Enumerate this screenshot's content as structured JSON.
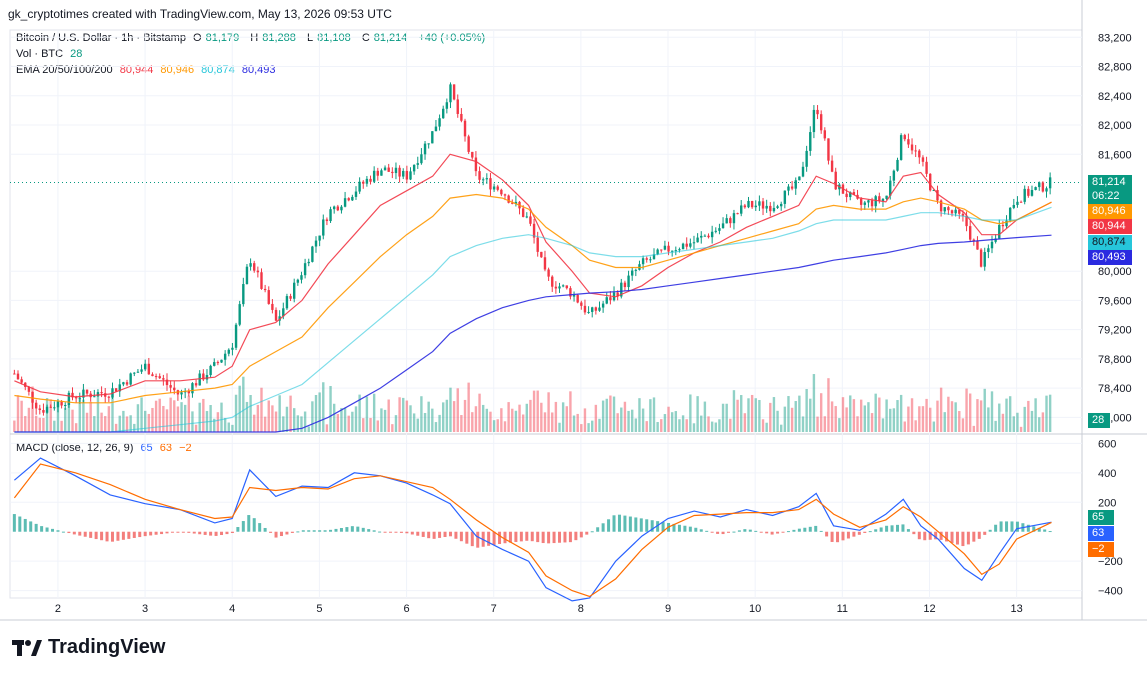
{
  "header": {
    "text": "gk_cryptotimes created with TradingView.com, May 13, 2026 09:53 UTC"
  },
  "legend": {
    "symbol": "Bitcoin / U.S. Dollar · 1h · Bitstamp",
    "o_label": "O",
    "o": "81,179",
    "h_label": "H",
    "h": "81,288",
    "l_label": "L",
    "l": "81,108",
    "c_label": "C",
    "c": "81,214",
    "change": "+40 (+0.05%)",
    "vol_label": "Vol · BTC",
    "vol": "28",
    "ema_label": "EMA 20/50/100/200",
    "ema20": "80,944",
    "ema50": "80,946",
    "ema100": "80,874",
    "ema200": "80,493",
    "macd_label": "MACD (close, 12, 26, 9)",
    "macd_v1": "65",
    "macd_v2": "63",
    "macd_v3": "−2"
  },
  "badges": {
    "price": "81,214",
    "countdown": "06:22",
    "ema50": "80,946",
    "ema20": "80,944",
    "ema100": "80,874",
    "ema200": "80,493",
    "vol": "28",
    "macd": "65",
    "signal": "63",
    "hist": "−2"
  },
  "colors": {
    "up": "#089981",
    "down": "#f23645",
    "ema20": "#f23645",
    "ema50": "#ff9800",
    "ema100": "#26c6da",
    "ema200": "#2a2ae0",
    "macd": "#2962ff",
    "signal": "#ff6d00"
  },
  "logo": {
    "text": "TradingView"
  },
  "chart_data": {
    "type": "line",
    "title": "",
    "x_ticks": [
      "2",
      "3",
      "4",
      "5",
      "6",
      "7",
      "8",
      "9",
      "10",
      "11",
      "12",
      "13"
    ],
    "price_axis": {
      "ticks": [
        "83,200",
        "82,800",
        "82,400",
        "82,000",
        "81,600",
        "80,000",
        "79,600",
        "79,200",
        "78,800",
        "78,400",
        "78,000"
      ],
      "ylim": [
        77800,
        83300
      ]
    },
    "macd_axis": {
      "ticks": [
        "600",
        "400",
        "200",
        "−200",
        "−400"
      ],
      "ylim": [
        -450,
        650
      ]
    },
    "price_series": {
      "name": "Bitcoin / U.S. Dollar",
      "x": [
        1.5,
        1.8,
        2.2,
        2.6,
        3.0,
        3.4,
        3.8,
        4.0,
        4.2,
        4.5,
        4.8,
        5.1,
        5.4,
        5.7,
        6.0,
        6.3,
        6.5,
        6.8,
        7.1,
        7.4,
        7.6,
        7.9,
        8.1,
        8.4,
        8.7,
        9.0,
        9.3,
        9.6,
        9.9,
        10.2,
        10.5,
        10.7,
        10.9,
        11.2,
        11.5,
        11.7,
        11.9,
        12.1,
        12.4,
        12.6,
        12.8,
        13.0,
        13.4
      ],
      "y": [
        78600,
        78100,
        78300,
        78350,
        78700,
        78300,
        78700,
        79000,
        80200,
        79300,
        80000,
        80800,
        81100,
        81400,
        81300,
        81900,
        82500,
        81300,
        81100,
        80700,
        79900,
        79700,
        79400,
        79700,
        80100,
        80300,
        80400,
        80600,
        80900,
        80900,
        81200,
        82300,
        81200,
        80900,
        81000,
        81900,
        81500,
        80900,
        80700,
        80100,
        80600,
        81000,
        81214
      ]
    },
    "ema_series": [
      {
        "name": "EMA 20",
        "y": [
          78500,
          78350,
          78280,
          78320,
          78500,
          78500,
          78550,
          78700,
          79200,
          79300,
          79600,
          80100,
          80500,
          80900,
          81100,
          81300,
          81600,
          81500,
          81250,
          80900,
          80400,
          80000,
          79700,
          79650,
          79800,
          80050,
          80250,
          80400,
          80600,
          80750,
          80900,
          81300,
          81200,
          81000,
          80950,
          81300,
          81350,
          81050,
          80800,
          80500,
          80500,
          80700,
          80944
        ]
      },
      {
        "name": "EMA 50",
        "y": [
          78300,
          78250,
          78200,
          78200,
          78300,
          78350,
          78400,
          78450,
          78700,
          78900,
          79100,
          79500,
          79850,
          80200,
          80500,
          80750,
          81000,
          81050,
          81000,
          80850,
          80600,
          80350,
          80150,
          80050,
          80050,
          80150,
          80250,
          80350,
          80450,
          80550,
          80650,
          80850,
          80900,
          80850,
          80850,
          80950,
          81000,
          80950,
          80850,
          80700,
          80650,
          80700,
          80946
        ]
      },
      {
        "name": "EMA 100",
        "y": [
          77800,
          77800,
          77800,
          77800,
          77850,
          77900,
          77950,
          78000,
          78150,
          78300,
          78450,
          78750,
          79050,
          79350,
          79650,
          79950,
          80200,
          80350,
          80450,
          80500,
          80450,
          80350,
          80250,
          80200,
          80200,
          80250,
          80300,
          80350,
          80400,
          80450,
          80550,
          80650,
          80700,
          80700,
          80700,
          80750,
          80800,
          80800,
          80750,
          80700,
          80700,
          80700,
          80874
        ]
      },
      {
        "name": "EMA 200",
        "y": [
          77800,
          77800,
          77800,
          77800,
          77800,
          77800,
          77800,
          77800,
          77800,
          77800,
          77850,
          78000,
          78200,
          78400,
          78650,
          78900,
          79150,
          79350,
          79500,
          79600,
          79650,
          79680,
          79700,
          79720,
          79750,
          79800,
          79850,
          79900,
          79950,
          80000,
          80050,
          80100,
          80150,
          80200,
          80250,
          80300,
          80350,
          80380,
          80400,
          80420,
          80440,
          80460,
          80493
        ]
      }
    ],
    "macd_series": [
      {
        "name": "MACD",
        "y": [
          350,
          500,
          380,
          250,
          190,
          150,
          60,
          90,
          420,
          240,
          310,
          300,
          400,
          380,
          330,
          250,
          190,
          -30,
          -120,
          -200,
          -380,
          -470,
          -450,
          -200,
          -30,
          90,
          140,
          100,
          150,
          110,
          170,
          260,
          40,
          10,
          120,
          220,
          40,
          -50,
          -250,
          -330,
          -150,
          20,
          65
        ]
      },
      {
        "name": "Signal",
        "y": [
          230,
          460,
          400,
          320,
          220,
          150,
          90,
          100,
          300,
          280,
          300,
          290,
          360,
          380,
          340,
          300,
          220,
          80,
          -40,
          -140,
          -300,
          -400,
          -440,
          -320,
          -120,
          30,
          110,
          120,
          130,
          130,
          150,
          220,
          120,
          30,
          80,
          170,
          100,
          0,
          -150,
          -290,
          -220,
          -50,
          63
        ]
      }
    ]
  }
}
